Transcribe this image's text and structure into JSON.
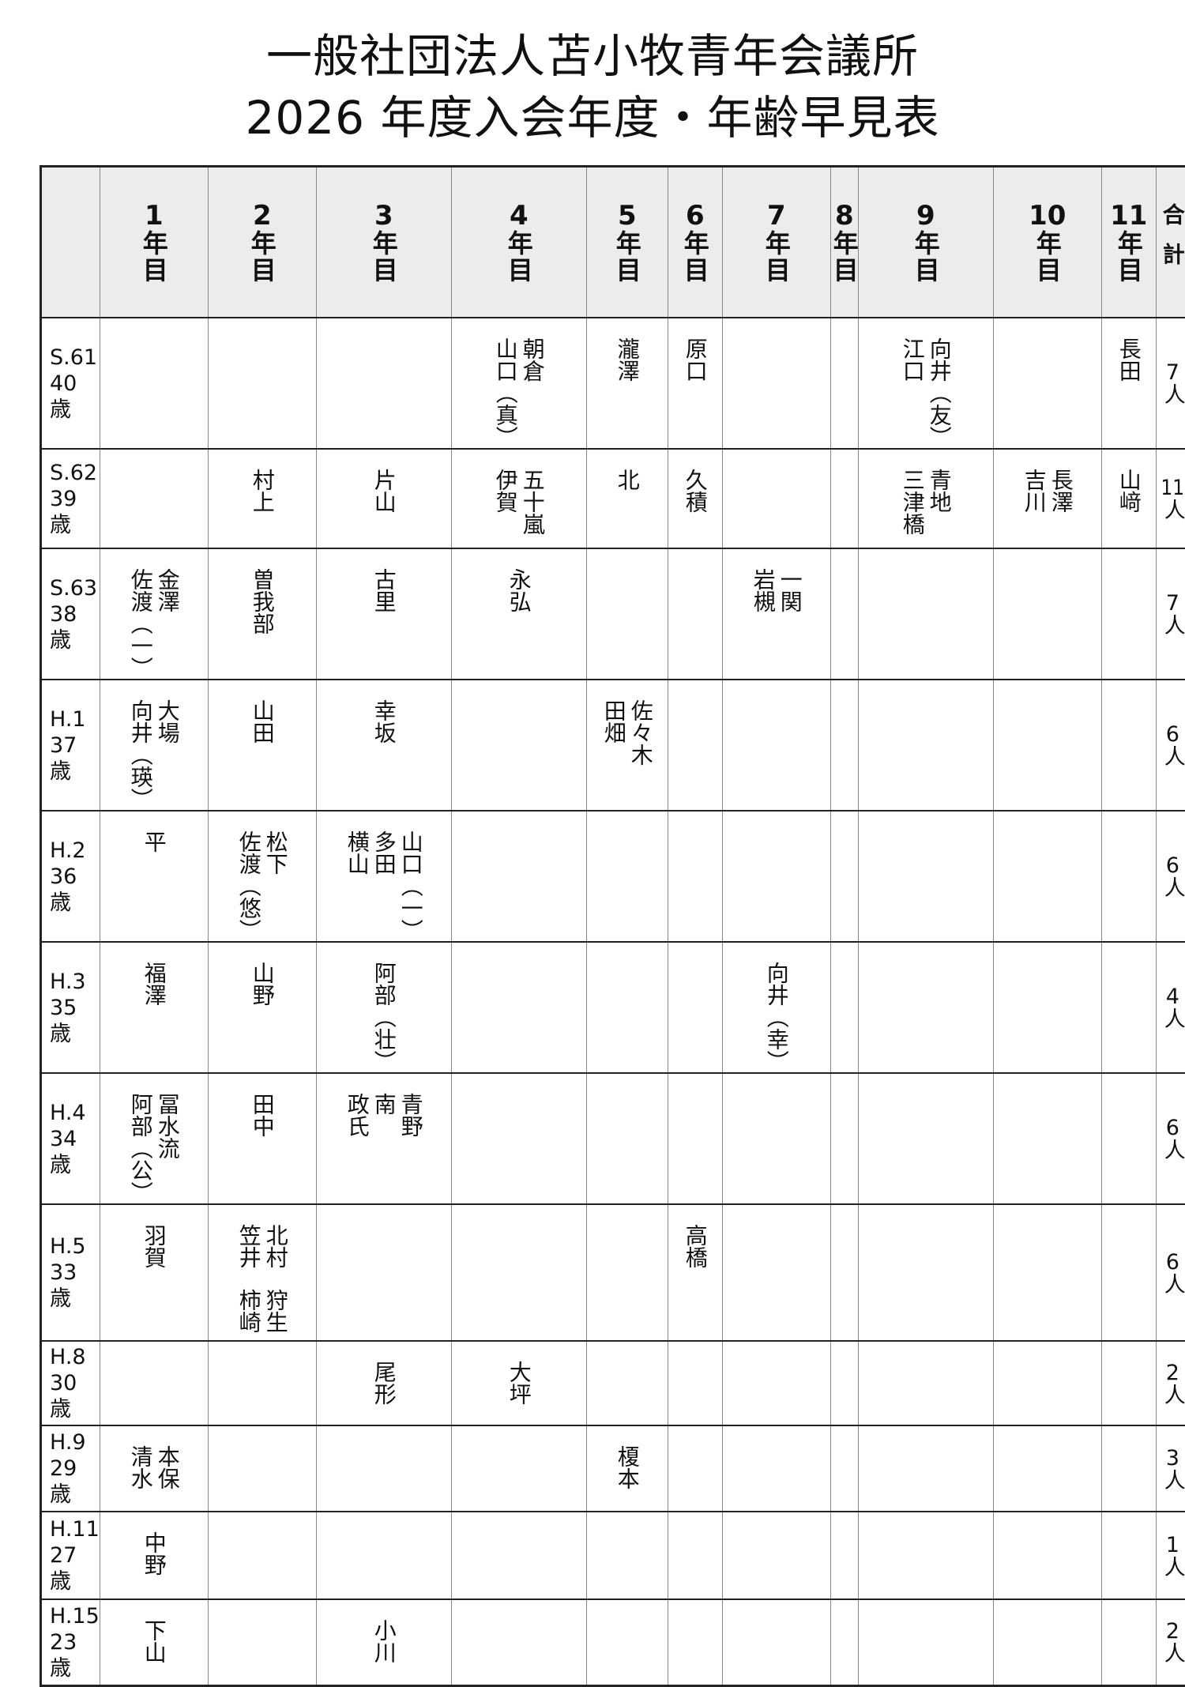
{
  "title": {
    "line1": "一般社団法人苫小牧青年会議所",
    "line2": "2026 年度入会年度・年齢早見表"
  },
  "headers": [
    {
      "num": "1",
      "suffix": "年目"
    },
    {
      "num": "2",
      "suffix": "年目"
    },
    {
      "num": "3",
      "suffix": "年目"
    },
    {
      "num": "4",
      "suffix": "年目"
    },
    {
      "num": "5",
      "suffix": "年目"
    },
    {
      "num": "6",
      "suffix": "年目"
    },
    {
      "num": "7",
      "suffix": "年目"
    },
    {
      "num": "8",
      "suffix": "年目"
    },
    {
      "num": "9",
      "suffix": "年目"
    },
    {
      "num": "10",
      "suffix": "年目"
    },
    {
      "num": "11",
      "suffix": "年目"
    }
  ],
  "total_header": "合計",
  "rows": [
    {
      "era": "S.61",
      "age": "40 歳",
      "cells": [
        [],
        [],
        [],
        [
          [
            "朝倉",
            "山口（真）"
          ]
        ],
        [
          [
            "瀧澤"
          ]
        ],
        [
          [
            "原口"
          ]
        ],
        [],
        [],
        [
          [
            "向井（友）",
            "江口"
          ]
        ],
        [],
        [
          [
            "長田"
          ]
        ]
      ],
      "total": {
        "count": "7",
        "unit": "人"
      }
    },
    {
      "era": "S.62",
      "age": "39 歳",
      "cells": [
        [],
        [
          [
            "村上"
          ]
        ],
        [
          [
            "片山"
          ]
        ],
        [
          [
            "五十嵐",
            "伊賀"
          ]
        ],
        [
          [
            "北"
          ]
        ],
        [
          [
            "久積"
          ]
        ],
        [],
        [],
        [
          [
            "青地",
            "三津橋"
          ]
        ],
        [
          [
            "長澤",
            "吉川"
          ]
        ],
        [
          [
            "山﨑"
          ]
        ]
      ],
      "total": {
        "count": "11",
        "unit": "人"
      }
    },
    {
      "era": "S.63",
      "age": "38 歳",
      "cells": [
        [
          [
            "金澤",
            "佐渡（一）"
          ]
        ],
        [
          [
            "曽我部"
          ]
        ],
        [
          [
            "古里"
          ]
        ],
        [
          [
            "永弘"
          ]
        ],
        [],
        [],
        [
          [
            "一関",
            "岩槻"
          ]
        ],
        [],
        [],
        [],
        []
      ],
      "total": {
        "count": "7",
        "unit": "人"
      }
    },
    {
      "era": "H.1",
      "age": "37 歳",
      "cells": [
        [
          [
            "大場",
            "向井（瑛）"
          ]
        ],
        [
          [
            "山田"
          ]
        ],
        [
          [
            "幸坂"
          ]
        ],
        [],
        [
          [
            "佐々木",
            "田畑"
          ]
        ],
        [],
        [],
        [],
        [],
        [],
        []
      ],
      "total": {
        "count": "6",
        "unit": "人"
      }
    },
    {
      "era": "H.2",
      "age": "36 歳",
      "cells": [
        [
          [
            "平"
          ]
        ],
        [
          [
            "松下",
            "佐渡（悠）"
          ]
        ],
        [
          [
            "山口（一）",
            "多田",
            "横山"
          ]
        ],
        [],
        [],
        [],
        [],
        [],
        [],
        [],
        []
      ],
      "total": {
        "count": "6",
        "unit": "人"
      }
    },
    {
      "era": "H.3",
      "age": "35 歳",
      "cells": [
        [
          [
            "福澤"
          ]
        ],
        [
          [
            "山野"
          ]
        ],
        [
          [
            "阿部（壮）"
          ]
        ],
        [],
        [],
        [],
        [
          [
            "向井（幸）"
          ]
        ],
        [],
        [],
        [],
        []
      ],
      "total": {
        "count": "4",
        "unit": "人"
      }
    },
    {
      "era": "H.4",
      "age": "34 歳",
      "cells": [
        [
          [
            "冨水流",
            "阿部（公）"
          ]
        ],
        [
          [
            "田中"
          ]
        ],
        [
          [
            "青野",
            "南",
            "政氏"
          ]
        ],
        [],
        [],
        [],
        [],
        [],
        [],
        [],
        []
      ],
      "total": {
        "count": "6",
        "unit": "人"
      }
    },
    {
      "era": "H.5",
      "age": "33 歳",
      "cells": [
        [
          [
            "羽賀"
          ]
        ],
        [
          [
            "北村",
            "笠井"
          ],
          [
            "狩生",
            "柿崎"
          ]
        ],
        [],
        [],
        [],
        [
          [
            "高橋"
          ]
        ],
        [],
        [],
        [],
        [],
        []
      ],
      "total": {
        "count": "6",
        "unit": "人"
      }
    },
    {
      "era": "H.8",
      "age": "30 歳",
      "cells": [
        [],
        [],
        [
          [
            "尾形"
          ]
        ],
        [
          [
            "大坪"
          ]
        ],
        [],
        [],
        [],
        [],
        [],
        [],
        []
      ],
      "total": {
        "count": "2",
        "unit": "人"
      }
    },
    {
      "era": "H.9",
      "age": "29 歳",
      "cells": [
        [
          [
            "本保",
            "清水"
          ]
        ],
        [],
        [],
        [],
        [
          [
            "榎本"
          ]
        ],
        [],
        [],
        [],
        [],
        [],
        []
      ],
      "total": {
        "count": "3",
        "unit": "人"
      }
    },
    {
      "era": "H.11",
      "age": "27 歳",
      "cells": [
        [
          [
            "中野"
          ]
        ],
        [],
        [],
        [],
        [],
        [],
        [],
        [],
        [],
        [],
        []
      ],
      "total": {
        "count": "1",
        "unit": "人"
      }
    },
    {
      "era": "H.15",
      "age": "23 歳",
      "cells": [
        [
          [
            "下山"
          ]
        ],
        [],
        [
          [
            "小川"
          ]
        ],
        [],
        [],
        [],
        [],
        [],
        [],
        [],
        []
      ],
      "total": {
        "count": "2",
        "unit": "人"
      }
    }
  ]
}
